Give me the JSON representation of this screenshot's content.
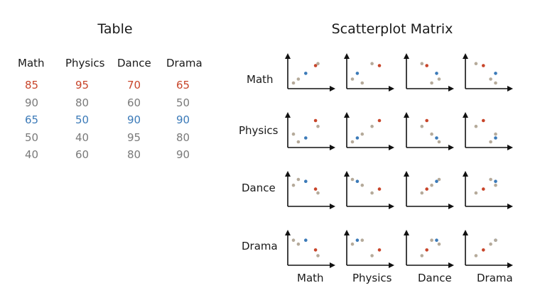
{
  "table": {
    "title": "Table",
    "headers": [
      "Math",
      "Physics",
      "Dance",
      "Drama"
    ],
    "rows": [
      {
        "values": [
          "85",
          "95",
          "70",
          "65"
        ],
        "color": "#c8452a"
      },
      {
        "values": [
          "90",
          "80",
          "60",
          "50"
        ],
        "color": "#7a7a7a"
      },
      {
        "values": [
          "65",
          "50",
          "90",
          "90"
        ],
        "color": "#3b7ab8"
      },
      {
        "values": [
          "50",
          "40",
          "95",
          "80"
        ],
        "color": "#7a7a7a"
      },
      {
        "values": [
          "40",
          "60",
          "80",
          "90"
        ],
        "color": "#7a7a7a"
      }
    ]
  },
  "matrix": {
    "title": "Scatterplot Matrix",
    "row_labels": [
      "Math",
      "Physics",
      "Dance",
      "Drama"
    ],
    "col_labels": [
      "Math",
      "Physics",
      "Dance",
      "Drama"
    ],
    "point_colors": [
      "#c8452a",
      "#b5aa9a",
      "#3b7ab8",
      "#b5aa9a",
      "#b5aa9a"
    ],
    "axis_color": "#111111"
  },
  "chart_data": {
    "type": "scatter",
    "variables": [
      "Math",
      "Physics",
      "Dance",
      "Drama"
    ],
    "records": [
      {
        "Math": 85,
        "Physics": 95,
        "Dance": 70,
        "Drama": 65,
        "color": "#c8452a"
      },
      {
        "Math": 90,
        "Physics": 80,
        "Dance": 60,
        "Drama": 50,
        "color": "#b5aa9a"
      },
      {
        "Math": 65,
        "Physics": 50,
        "Dance": 90,
        "Drama": 90,
        "color": "#3b7ab8"
      },
      {
        "Math": 50,
        "Physics": 40,
        "Dance": 95,
        "Drama": 80,
        "color": "#b5aa9a"
      },
      {
        "Math": 40,
        "Physics": 60,
        "Dance": 80,
        "Drama": 90,
        "color": "#b5aa9a"
      }
    ],
    "value_range": [
      40,
      95
    ]
  }
}
